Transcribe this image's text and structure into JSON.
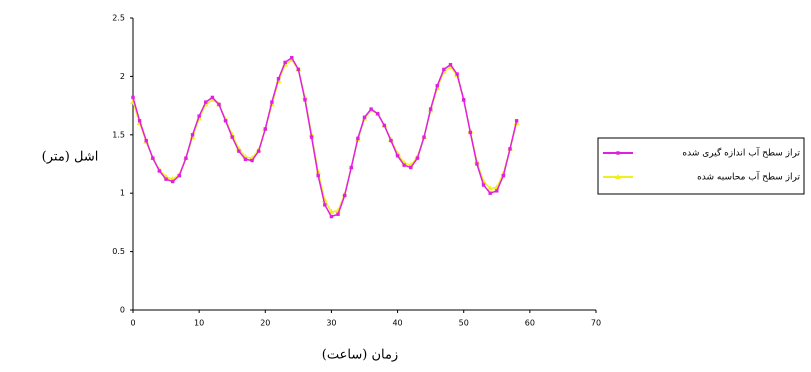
{
  "chart_data": {
    "type": "line",
    "y_label": "اشل (متر)",
    "x_label": "زمان (ساعت)",
    "x": [
      0,
      1,
      2,
      3,
      4,
      5,
      6,
      7,
      8,
      9,
      10,
      11,
      12,
      13,
      14,
      15,
      16,
      17,
      18,
      19,
      20,
      21,
      22,
      23,
      24,
      25,
      26,
      27,
      28,
      29,
      30,
      31,
      32,
      33,
      34,
      35,
      36,
      37,
      38,
      39,
      40,
      41,
      42,
      43,
      44,
      45,
      46,
      47,
      48,
      49,
      50,
      51,
      52,
      53,
      54,
      55,
      56,
      57,
      58
    ],
    "series": [
      {
        "name": "تراز سطح آب اندازه گیری شده",
        "color": "#e020e0",
        "marker": "square",
        "values": [
          1.82,
          1.62,
          1.45,
          1.3,
          1.19,
          1.12,
          1.1,
          1.15,
          1.3,
          1.5,
          1.66,
          1.78,
          1.82,
          1.76,
          1.62,
          1.48,
          1.36,
          1.29,
          1.28,
          1.36,
          1.55,
          1.78,
          1.98,
          2.12,
          2.16,
          2.06,
          1.8,
          1.48,
          1.15,
          0.9,
          0.8,
          0.82,
          0.98,
          1.22,
          1.47,
          1.65,
          1.72,
          1.68,
          1.58,
          1.45,
          1.32,
          1.24,
          1.22,
          1.3,
          1.48,
          1.72,
          1.92,
          2.06,
          2.1,
          2.02,
          1.8,
          1.52,
          1.25,
          1.07,
          1.0,
          1.02,
          1.15,
          1.38,
          1.62
        ]
      },
      {
        "name": "تراز سطح آب محاسبه شده",
        "color": "#f0f020",
        "marker": "triangle",
        "values": [
          1.78,
          1.6,
          1.44,
          1.3,
          1.2,
          1.14,
          1.12,
          1.16,
          1.3,
          1.48,
          1.64,
          1.76,
          1.8,
          1.76,
          1.63,
          1.5,
          1.38,
          1.31,
          1.3,
          1.37,
          1.55,
          1.76,
          1.96,
          2.1,
          2.14,
          2.06,
          1.82,
          1.5,
          1.18,
          0.94,
          0.84,
          0.85,
          0.99,
          1.22,
          1.46,
          1.64,
          1.71,
          1.68,
          1.58,
          1.46,
          1.34,
          1.26,
          1.24,
          1.31,
          1.48,
          1.71,
          1.9,
          2.04,
          2.08,
          2.01,
          1.8,
          1.53,
          1.27,
          1.1,
          1.04,
          1.05,
          1.17,
          1.38,
          1.6
        ]
      }
    ],
    "xlim": [
      0,
      70
    ],
    "xticks": [
      0,
      10,
      20,
      30,
      40,
      50,
      60,
      70
    ],
    "ylim": [
      0,
      2.5
    ],
    "yticks": [
      0,
      0.5,
      1,
      1.5,
      2,
      2.5
    ],
    "grid": false,
    "legend": "right"
  }
}
